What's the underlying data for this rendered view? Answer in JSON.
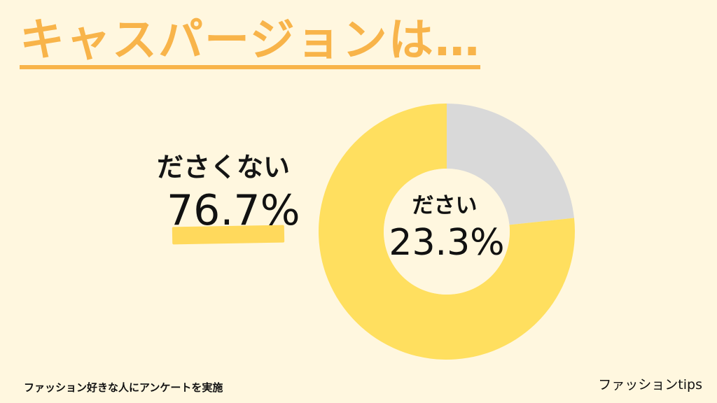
{
  "title": "キャスパージョンは…",
  "footnote": "ファッション好きな人にアンケートを実施",
  "brand": "ファッションtips",
  "colors": {
    "background": "#fff7df",
    "title": "#f8b44a",
    "main_slice": "#ffdf5f",
    "minor_slice": "#d9d9d9",
    "highlight": "#ffd95c",
    "text": "#111111"
  },
  "chart_data": {
    "type": "pie",
    "title": "キャスパージョンは…",
    "labels": [
      "ださい",
      "ださくない"
    ],
    "values": [
      23.3,
      76.7
    ],
    "value_labels": [
      "23.3%",
      "76.7%"
    ],
    "colors": [
      "#d9d9d9",
      "#ffdf5f"
    ],
    "donut": true,
    "legend": "none"
  }
}
